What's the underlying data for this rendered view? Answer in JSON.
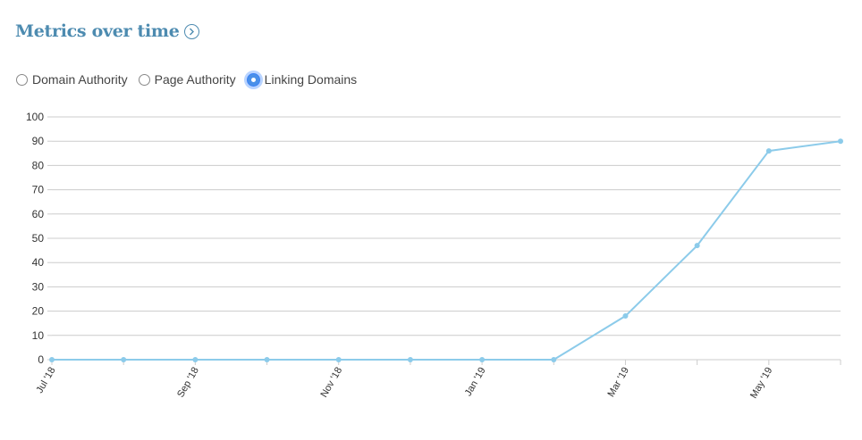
{
  "header": {
    "title": "Metrics over time",
    "info_icon": "chevron-right-circle-icon"
  },
  "metric_toggle": {
    "options": [
      {
        "label": "Domain Authority",
        "selected": false
      },
      {
        "label": "Page Authority",
        "selected": false
      },
      {
        "label": "Linking Domains",
        "selected": true
      }
    ]
  },
  "colors": {
    "title": "#4d8bb0",
    "series": "#8ccbea",
    "grid": "#cccccc",
    "radio_selected": "#4a90e8"
  },
  "chart_data": {
    "type": "line",
    "title": "",
    "xlabel": "",
    "ylabel": "",
    "ylim": [
      0,
      100
    ],
    "yticks": [
      0,
      10,
      20,
      30,
      40,
      50,
      60,
      70,
      80,
      90,
      100
    ],
    "x": [
      "Jul '18",
      "Aug '18",
      "Sep '18",
      "Oct '18",
      "Nov '18",
      "Dec '18",
      "Jan '19",
      "Feb '19",
      "Mar '19",
      "Apr '19",
      "May '19",
      "Jun '19"
    ],
    "xtick_labels": [
      "Jul '18",
      "Sep '18",
      "Nov '18",
      "Jan '19",
      "Mar '19",
      "May '19"
    ],
    "series": [
      {
        "values": [
          0,
          0,
          0,
          0,
          0,
          0,
          0,
          0,
          18,
          47,
          86,
          90
        ]
      }
    ],
    "grid": true,
    "legend": "none"
  }
}
